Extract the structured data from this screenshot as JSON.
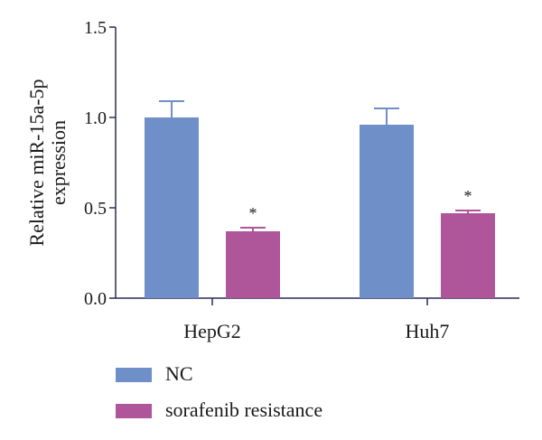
{
  "chart_data": {
    "type": "bar",
    "title": "",
    "xlabel": "",
    "ylabel": "Relative miR-15a-5p expression",
    "ylabel_lines": [
      "Relative miR-15a-5p",
      "expression"
    ],
    "categories": [
      "HepG2",
      "Huh7"
    ],
    "ylim": [
      0,
      1.5
    ],
    "yticks": [
      0.0,
      0.5,
      1.0,
      1.5
    ],
    "ytick_labels": [
      "0.0",
      "0.5",
      "1.0",
      "1.5"
    ],
    "series": [
      {
        "name": "NC",
        "color": "#6f8fc8",
        "values": [
          1.0,
          0.96
        ],
        "errors": [
          0.09,
          0.09
        ],
        "annotations": [
          "",
          ""
        ]
      },
      {
        "name": "sorafenib resistance",
        "color": "#ae5699",
        "values": [
          0.37,
          0.47
        ],
        "errors": [
          0.02,
          0.015
        ],
        "annotations": [
          "*",
          "*"
        ]
      }
    ],
    "legend": {
      "placement": "bottom-left",
      "entries": [
        "NC",
        "sorafenib resistance"
      ]
    },
    "grid": false
  }
}
